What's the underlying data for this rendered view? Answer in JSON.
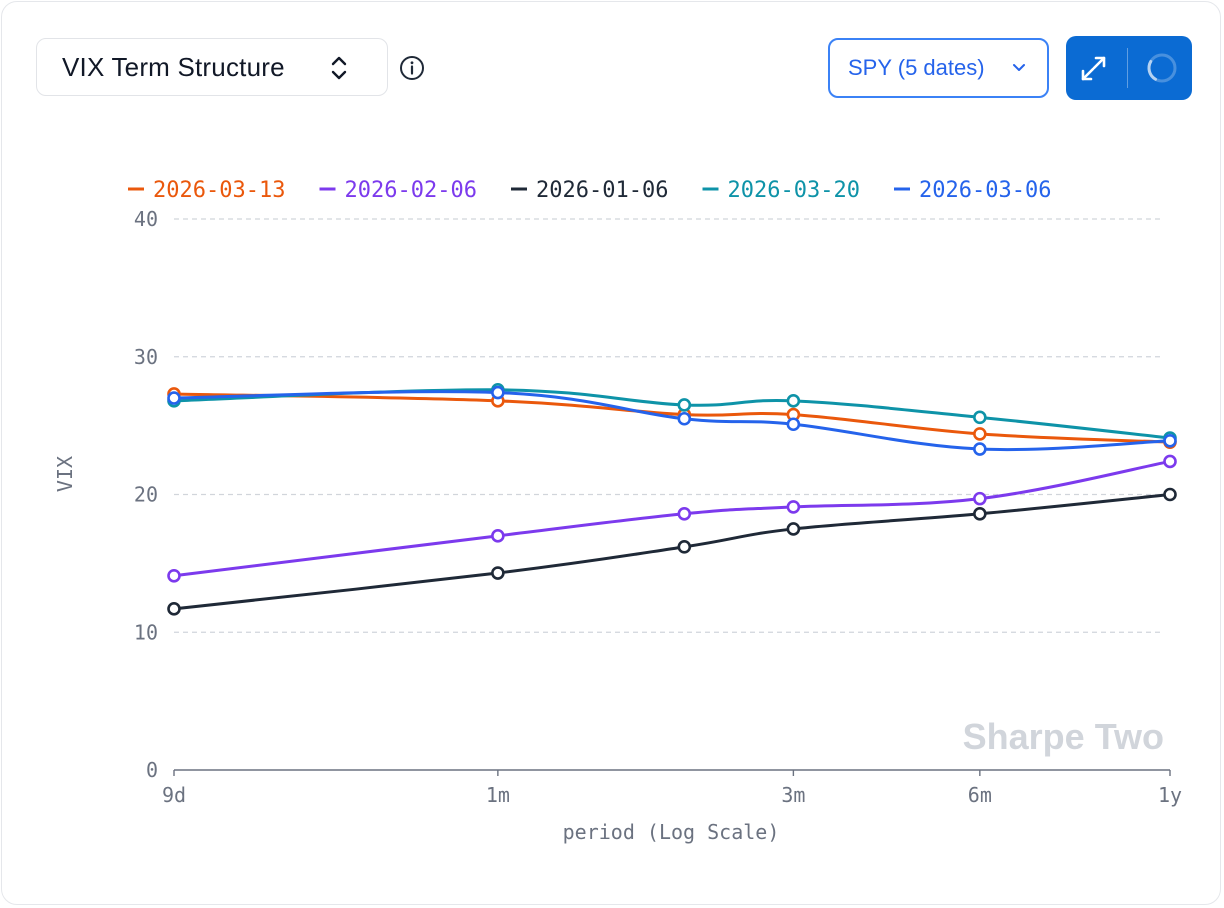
{
  "header": {
    "metric_selector": "VIX Term Structure",
    "ticker_selector": "SPY (5 dates)"
  },
  "colors": {
    "accent": "#0b6bd3",
    "ticker_border": "#3b82f6",
    "grid": "#d1d5db",
    "axis": "#6b7280",
    "watermark": "#d1d5db"
  },
  "icons": {
    "selector": "chevron-up-down-icon",
    "info": "info-circle-icon",
    "ticker": "chevron-down-icon",
    "expand": "expand-arrows-icon",
    "loading": "loading-spinner-icon"
  },
  "watermark": "Sharpe Two",
  "chart_data": {
    "type": "line",
    "xlabel": "period (Log Scale)",
    "ylabel": "VIX",
    "x_scale": "log",
    "x_ticks": [
      "9d",
      "1m",
      "3m",
      "6m",
      "1y"
    ],
    "ylim": [
      0,
      40
    ],
    "y_ticks": [
      0,
      10,
      20,
      30,
      40
    ],
    "grid": "horizontal dashed",
    "legend_position": "top",
    "x": [
      "9d",
      "1m",
      "2m",
      "3m",
      "6m",
      "1y"
    ],
    "series": [
      {
        "name": "2026-03-13",
        "color": "#ea580c",
        "values": [
          27.3,
          26.8,
          25.8,
          25.8,
          24.4,
          23.8
        ]
      },
      {
        "name": "2026-02-06",
        "color": "#7c3aed",
        "values": [
          14.1,
          17.0,
          18.6,
          19.1,
          19.7,
          22.4
        ]
      },
      {
        "name": "2026-01-06",
        "color": "#1f2937",
        "values": [
          11.7,
          14.3,
          16.2,
          17.5,
          18.6,
          20.0
        ]
      },
      {
        "name": "2026-03-20",
        "color": "#0e93a8",
        "values": [
          26.8,
          27.6,
          26.5,
          26.8,
          25.6,
          24.1
        ]
      },
      {
        "name": "2026-03-06",
        "color": "#2563eb",
        "values": [
          27.0,
          27.4,
          25.5,
          25.1,
          23.3,
          23.9
        ]
      }
    ]
  }
}
